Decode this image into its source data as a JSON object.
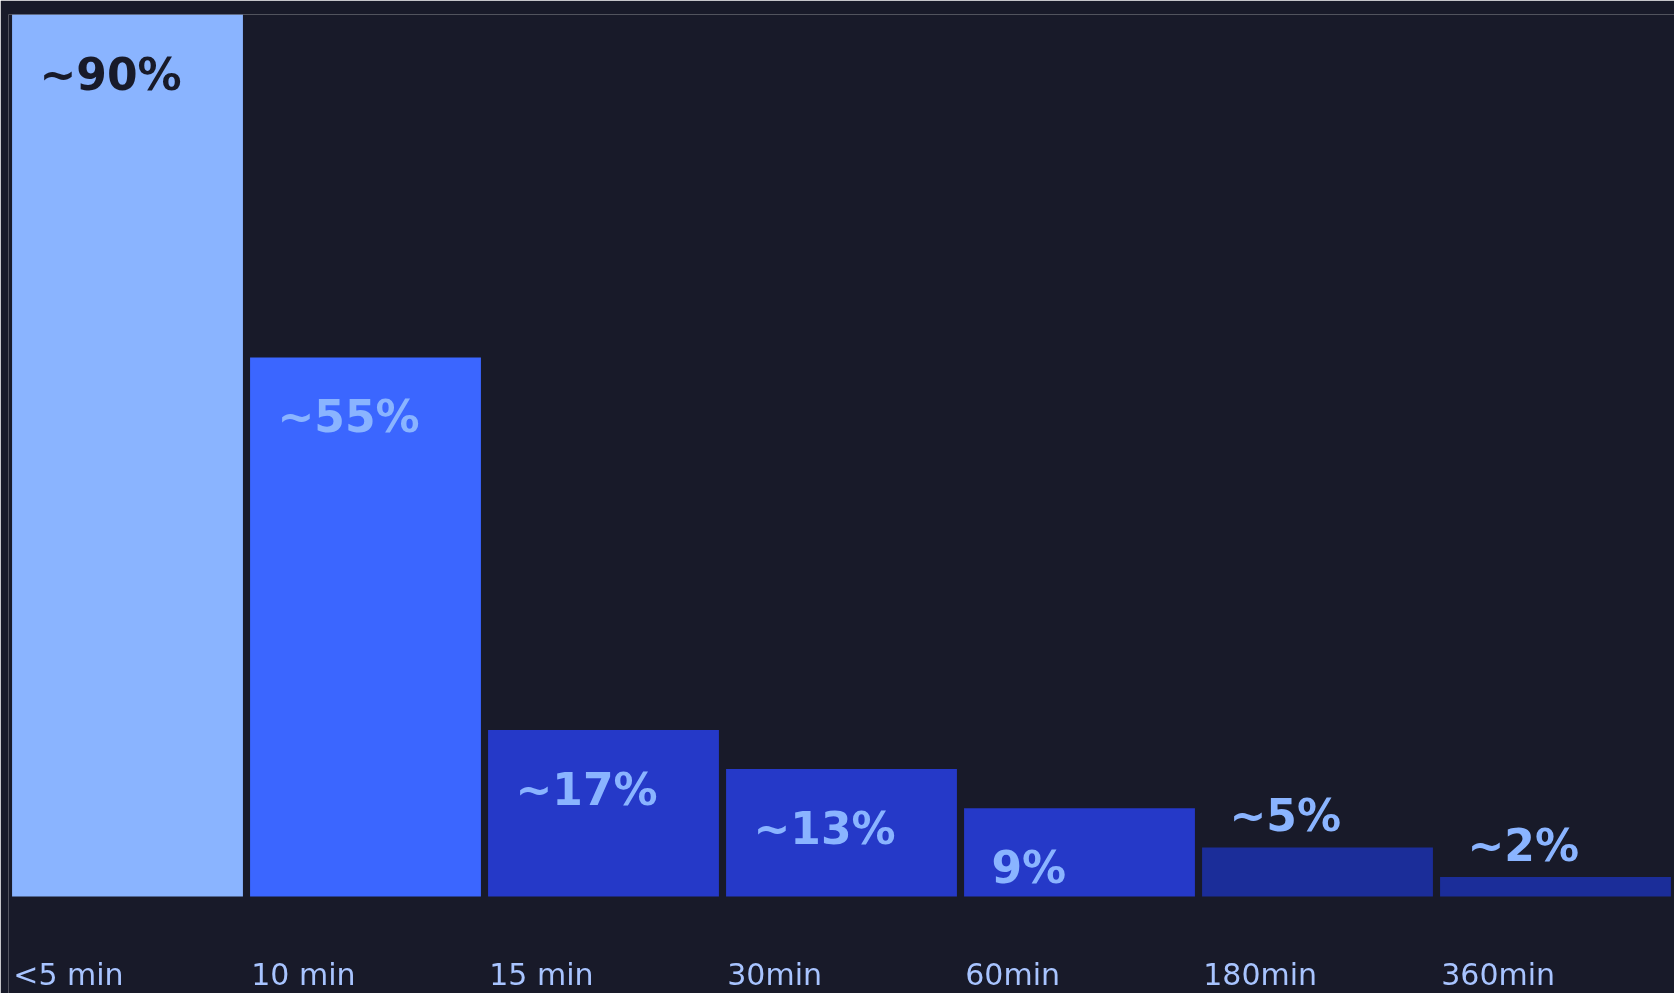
{
  "chart_data": {
    "type": "bar",
    "categories": [
      "<5 min",
      "10 min",
      "15 min",
      "30min",
      "60min",
      "180min",
      "360min"
    ],
    "values": [
      90,
      55,
      17,
      13,
      9,
      5,
      2
    ],
    "colors": [
      "#8ab4ff",
      "#3b66ff",
      "#2539c8",
      "#2539c8",
      "#2539c8",
      "#1b2d99",
      "#1b2d99"
    ],
    "value_labels": [
      "~90%",
      "~55%",
      "~17%",
      "~13%",
      "9%",
      "~5%",
      "~2%"
    ],
    "grid": false
  }
}
